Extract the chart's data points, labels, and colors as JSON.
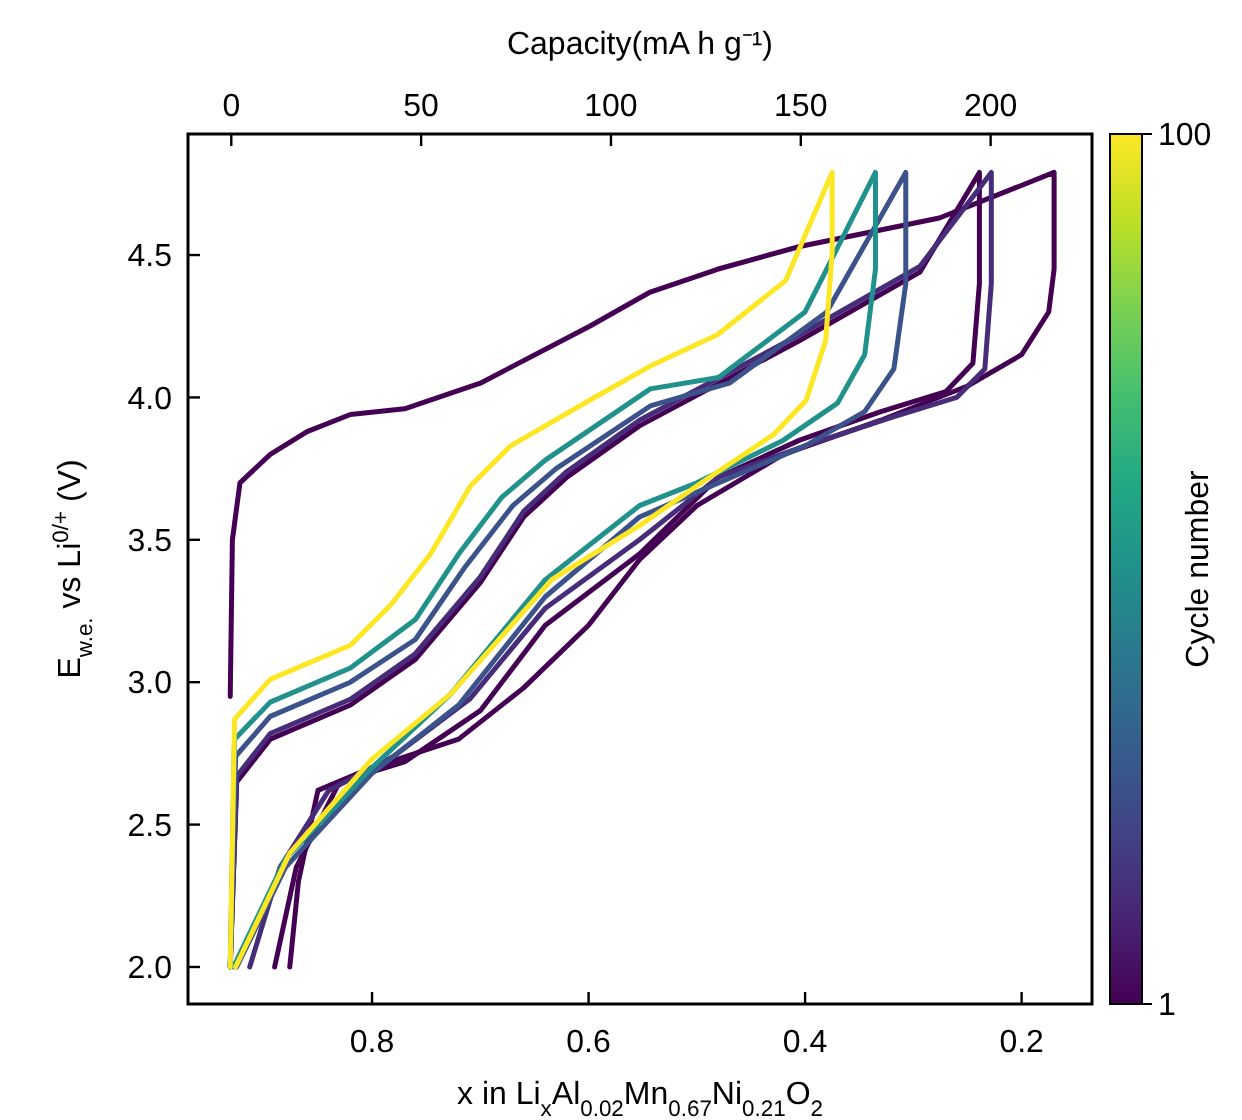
{
  "chart_data": {
    "type": "line",
    "xlabel": "x in Li$_{x}$Al$_{0.02}$Mn$_{0.67}$Ni$_{0.21}$O$_{2}$",
    "ylabel": "E$_{w.e.}$ vs Li$^{0/+}$ (V)",
    "x2label": "Capacity(mA h g⁻¹)",
    "clabel": "Cycle number",
    "xlim": [
      0.97,
      0.135
    ],
    "xticks": [
      0.8,
      0.6,
      0.4,
      0.2
    ],
    "x2lim": [
      -11.4,
      226.7
    ],
    "x2ticks": [
      0,
      50,
      100,
      150,
      200
    ],
    "ylim": [
      1.87,
      4.925
    ],
    "yticks": [
      {
        "value": 2,
        "label": "2.0"
      },
      2.5,
      {
        "value": 3,
        "label": "3.0"
      },
      3.5,
      {
        "value": 4,
        "label": "4.0"
      },
      4.5
    ],
    "clim": [
      1,
      100
    ],
    "cticks": [
      1,
      100
    ],
    "series": [
      {
        "color": "#440154",
        "x": [
          0.931,
          0.929,
          0.922,
          0.894,
          0.86,
          0.82,
          0.77,
          0.7,
          0.599,
          0.543,
          0.481,
          0.405,
          0.276,
          0.17,
          0.17,
          0.175,
          0.2,
          0.25,
          0.33,
          0.42,
          0.5,
          0.553,
          0.6,
          0.66,
          0.72,
          0.8,
          0.85,
          0.868,
          0.876
        ],
        "values": [
          2.95,
          3.5,
          3.7,
          3.8,
          3.88,
          3.94,
          3.96,
          4.05,
          4.25,
          4.37,
          4.45,
          4.53,
          4.63,
          4.79,
          4.45,
          4.3,
          4.15,
          4.04,
          3.92,
          3.8,
          3.62,
          3.43,
          3.2,
          2.98,
          2.8,
          2.7,
          2.62,
          2.3,
          2.0
        ]
      },
      {
        "color": "#440154",
        "x": [
          0.931,
          0.925,
          0.894,
          0.82,
          0.76,
          0.7,
          0.66,
          0.62,
          0.553,
          0.405,
          0.294,
          0.239,
          0.239,
          0.245,
          0.27,
          0.33,
          0.405,
          0.48,
          0.553,
          0.64,
          0.7,
          0.77,
          0.83,
          0.87,
          0.89
        ],
        "values": [
          2.0,
          2.65,
          2.8,
          2.92,
          3.08,
          3.35,
          3.58,
          3.72,
          3.9,
          4.2,
          4.44,
          4.79,
          4.4,
          4.12,
          4.02,
          3.95,
          3.85,
          3.72,
          3.45,
          3.2,
          2.9,
          2.72,
          2.65,
          2.35,
          2.0
        ]
      },
      {
        "color": "#472c7a",
        "x": [
          0.931,
          0.925,
          0.894,
          0.82,
          0.76,
          0.7,
          0.66,
          0.62,
          0.553,
          0.405,
          0.294,
          0.228,
          0.228,
          0.234,
          0.26,
          0.32,
          0.4,
          0.48,
          0.553,
          0.64,
          0.71,
          0.78,
          0.84,
          0.885,
          0.913
        ],
        "values": [
          2.0,
          2.67,
          2.82,
          2.94,
          3.1,
          3.37,
          3.6,
          3.74,
          3.92,
          4.22,
          4.46,
          4.79,
          4.4,
          4.1,
          4.0,
          3.93,
          3.83,
          3.72,
          3.5,
          3.26,
          2.94,
          2.74,
          2.62,
          2.35,
          2.0
        ]
      },
      {
        "color": "#3b528b",
        "x": [
          0.931,
          0.926,
          0.894,
          0.82,
          0.76,
          0.715,
          0.67,
          0.63,
          0.543,
          0.47,
          0.38,
          0.307,
          0.307,
          0.318,
          0.345,
          0.4,
          0.48,
          0.553,
          0.64,
          0.72,
          0.8,
          0.88,
          0.925
        ],
        "values": [
          2.0,
          2.74,
          2.88,
          3.0,
          3.15,
          3.4,
          3.62,
          3.75,
          3.97,
          4.05,
          4.3,
          4.79,
          4.4,
          4.1,
          3.95,
          3.83,
          3.7,
          3.58,
          3.3,
          2.92,
          2.68,
          2.35,
          2.0
        ]
      },
      {
        "color": "#21918c",
        "x": [
          0.931,
          0.927,
          0.894,
          0.82,
          0.76,
          0.72,
          0.68,
          0.64,
          0.543,
          0.48,
          0.4,
          0.335,
          0.335,
          0.345,
          0.37,
          0.42,
          0.5,
          0.553,
          0.64,
          0.727,
          0.8,
          0.88,
          0.928
        ],
        "values": [
          2.0,
          2.8,
          2.93,
          3.05,
          3.22,
          3.45,
          3.65,
          3.78,
          4.03,
          4.07,
          4.3,
          4.79,
          4.45,
          4.15,
          3.98,
          3.85,
          3.7,
          3.62,
          3.36,
          2.96,
          2.7,
          2.38,
          2.0
        ]
      },
      {
        "color": "#fde725",
        "x": [
          0.931,
          0.927,
          0.894,
          0.82,
          0.783,
          0.746,
          0.709,
          0.672,
          0.599,
          0.543,
          0.481,
          0.418,
          0.375,
          0.375,
          0.381,
          0.399,
          0.429,
          0.492,
          0.553,
          0.634,
          0.727,
          0.8,
          0.876,
          0.926
        ],
        "values": [
          2.0,
          2.87,
          3.01,
          3.13,
          3.27,
          3.45,
          3.69,
          3.83,
          3.99,
          4.11,
          4.22,
          4.41,
          4.79,
          4.51,
          4.2,
          3.99,
          3.87,
          3.71,
          3.55,
          3.36,
          2.96,
          2.73,
          2.4,
          2.0
        ]
      }
    ]
  }
}
